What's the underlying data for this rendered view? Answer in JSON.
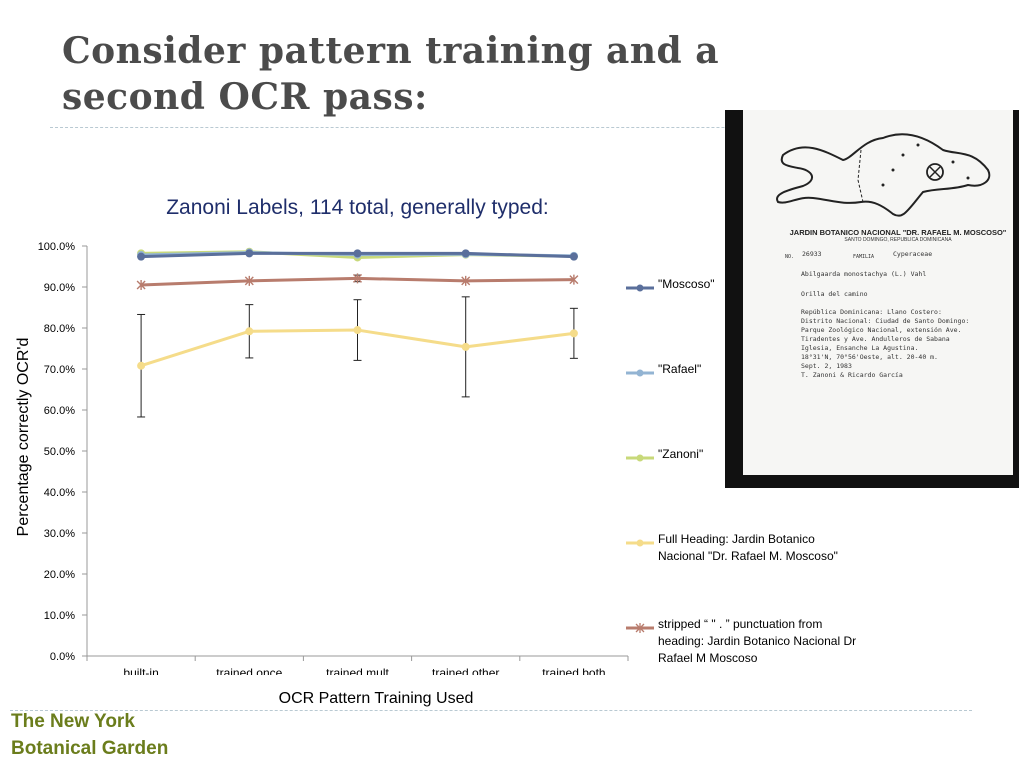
{
  "slide": {
    "title": "Consider pattern training and a second OCR pass:",
    "organization_line1": "The New York",
    "organization_line2": "Botanical Garden"
  },
  "chart_data": {
    "type": "line",
    "title": "Zanoni Labels, 114 total, generally typed:",
    "xlabel": "OCR Pattern Training Used",
    "ylabel": "Percentage correctly OCR'd",
    "categories": [
      "built-in",
      "trained once",
      "trained mult",
      "trained other",
      "trained both"
    ],
    "ylim": [
      0,
      100
    ],
    "y_ticks": [
      "0.0%",
      "10.0%",
      "20.0%",
      "30.0%",
      "40.0%",
      "50.0%",
      "60.0%",
      "70.0%",
      "80.0%",
      "90.0%",
      "100.0%"
    ],
    "grid": false,
    "legend_position": "right",
    "series": [
      {
        "name": "\"Moscoso\"",
        "values": [
          97.4,
          98.2,
          98.2,
          98.2,
          97.4
        ],
        "color": "#5a6f9b",
        "marker": "circle"
      },
      {
        "name": "\"Rafael\"",
        "values": [
          97.8,
          98.4,
          97.9,
          98.0,
          97.6
        ],
        "color": "#93b4d3",
        "marker": "circle"
      },
      {
        "name": "\"Zanoni\"",
        "values": [
          98.2,
          98.6,
          97.2,
          97.9,
          97.5
        ],
        "color": "#c8d97a",
        "marker": "circle"
      },
      {
        "name": "Full Heading: Jardin Botanico Nacional \"Dr. Rafael M. Moscoso\"",
        "values": [
          70.8,
          79.2,
          79.5,
          75.4,
          78.7
        ],
        "color": "#f5dc8a",
        "marker": "circle",
        "error": [
          12.5,
          6.5,
          7.4,
          12.2,
          6.1
        ]
      },
      {
        "name": "stripped “ \" . ” punctuation from heading: Jardin Botanico Nacional Dr Rafael M Moscoso",
        "values": [
          90.5,
          91.5,
          92.1,
          91.5,
          91.8
        ],
        "color": "#b87c6d",
        "marker": "star",
        "error": [
          0,
          0,
          0.8,
          0,
          0
        ]
      }
    ]
  },
  "photo": {
    "label_heading": "JARDIN BOTANICO NACIONAL \"DR. RAFAEL M. MOSCOSO\"",
    "label_subheading": "SANTO DOMINGO, REPUBLICA DOMINICANA",
    "label_no": "NO.",
    "label_number": "26933",
    "label_familia": "FAMILIA",
    "label_family": "Cyperaceae",
    "label_species": "Abilgaarda monostachya (L.) Vahl",
    "label_habitat": "Orilla del camino",
    "label_locality": [
      "República Dominicana: Llano Costero:",
      "Distrito Nacional: Ciudad de Santo Domingo:",
      "Parque Zoológico Nacional, extensión Ave.",
      "Tiradentes y Ave. Andulleros de Sabana",
      "Iglesia, Ensanche La Agustina.",
      "18°31'N, 70°56'Oeste, alt. 20-40 m.",
      "Sept. 2, 1983",
      "T. Zanoni & Ricardo García"
    ]
  }
}
